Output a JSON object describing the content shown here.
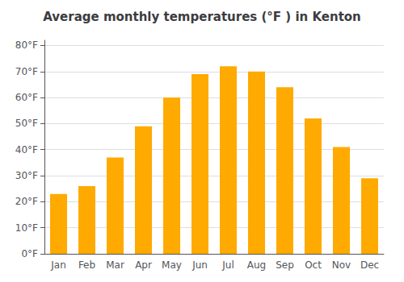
{
  "chart_data": {
    "type": "bar",
    "title": "Average monthly temperatures (°F ) in Kenton",
    "categories": [
      "Jan",
      "Feb",
      "Mar",
      "Apr",
      "May",
      "Jun",
      "Jul",
      "Aug",
      "Sep",
      "Oct",
      "Nov",
      "Dec"
    ],
    "values": [
      23,
      26,
      37,
      49,
      60,
      69,
      72,
      70,
      64,
      52,
      41,
      29
    ],
    "color": "#FFAA00",
    "ylim": [
      0,
      82
    ],
    "yticks": [
      {
        "value": 0,
        "label": "0°F"
      },
      {
        "value": 10,
        "label": "10°F"
      },
      {
        "value": 20,
        "label": "20°F"
      },
      {
        "value": 30,
        "label": "30°F"
      },
      {
        "value": 40,
        "label": "40°F"
      },
      {
        "value": 50,
        "label": "50°F"
      },
      {
        "value": 60,
        "label": "60°F"
      },
      {
        "value": 70,
        "label": "70°F"
      },
      {
        "value": 80,
        "label": "80°F"
      }
    ],
    "grid": true
  }
}
